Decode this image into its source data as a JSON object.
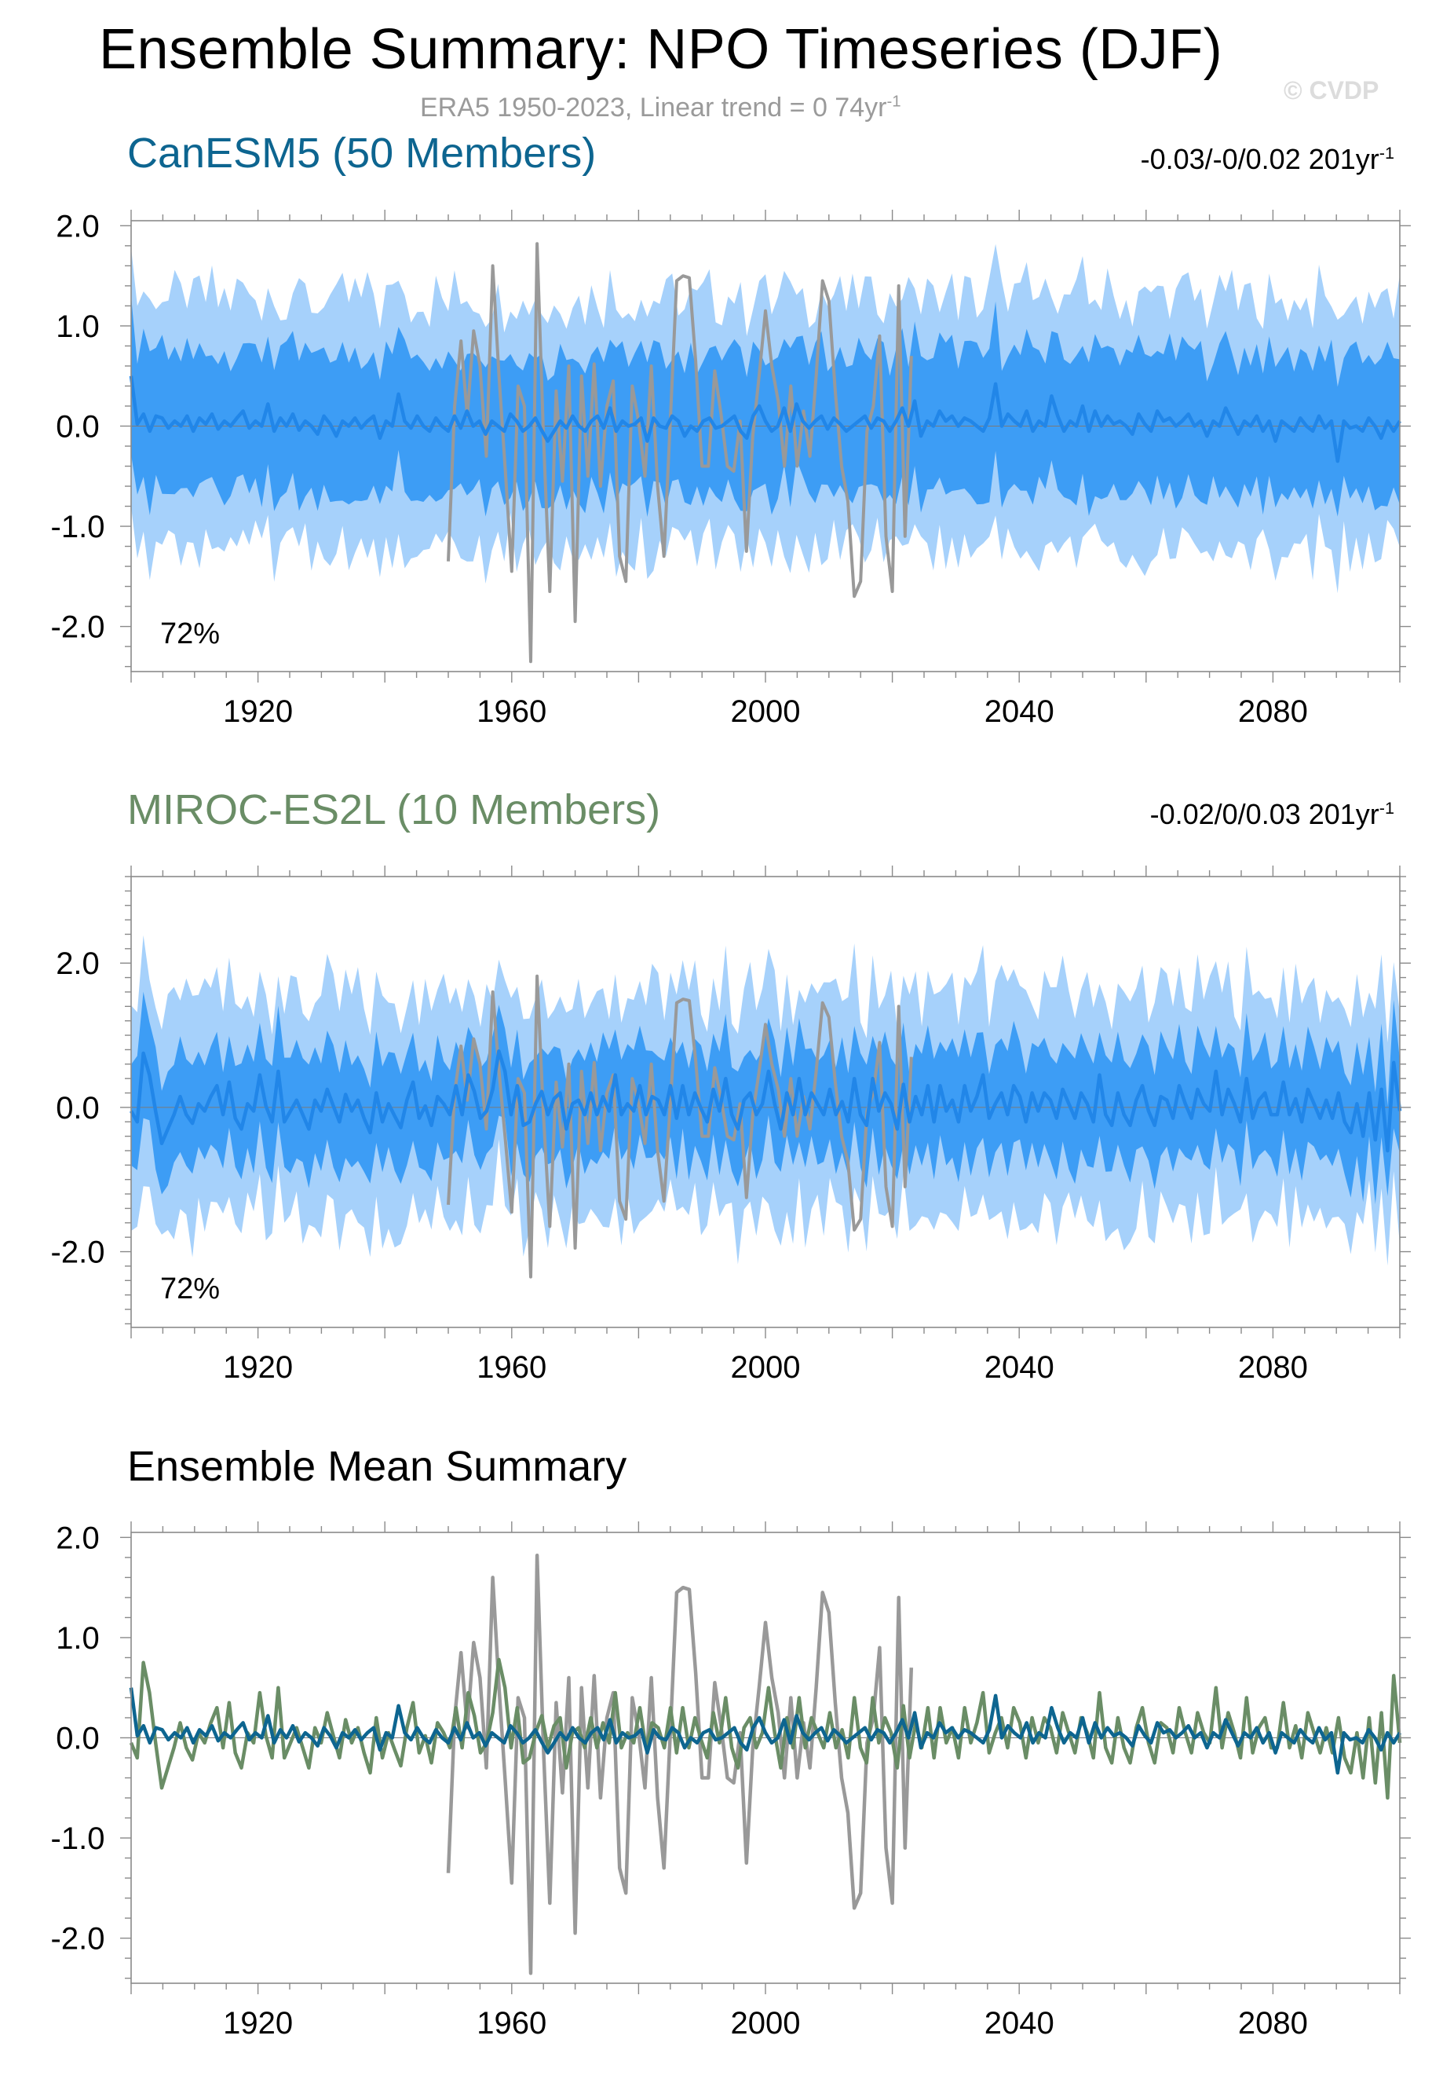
{
  "header": {
    "title": "Ensemble Summary: NPO Timeseries (DJF)",
    "subtitle": "ERA5 1950-2023, Linear trend = 0 74yr",
    "subtitle_sup": "-1",
    "copyright": "© CVDP"
  },
  "colors": {
    "canesm5": "#0d6590",
    "miroc": "#6a8d66",
    "band_outer": "#a6d1fb",
    "band_inner": "#3d9df5",
    "ens_mean_line": "#2186e8",
    "obs": "#999999"
  },
  "panels": [
    {
      "title": "CanESM5 (50 Members)",
      "trend": "-0.03/-0/0.02 201yr",
      "trend_sup": "-1",
      "percent": "72%"
    },
    {
      "title": "MIROC-ES2L (10 Members)",
      "trend": "-0.02/0/0.03 201yr",
      "trend_sup": "-1",
      "percent": "72%"
    },
    {
      "title": "Ensemble Mean Summary",
      "trend": "",
      "trend_sup": "",
      "percent": ""
    }
  ],
  "chart_data": [
    {
      "type": "area",
      "title": "CanESM5 (50 Members)",
      "xlim": [
        1900,
        2100
      ],
      "ylim": [
        -2.45,
        2.05
      ],
      "xticks": [
        "1920",
        "1960",
        "2000",
        "2040",
        "2080"
      ],
      "yticks": [
        "2.0",
        "1.0",
        "0.0",
        "-1.0",
        "-2.0"
      ],
      "annotation": "72%",
      "series": [
        {
          "name": "ensemble mean",
          "x_start": 1900,
          "x_end": 2100,
          "values": [
            0.5,
            0.02,
            0.12,
            -0.05,
            0.1,
            0.08,
            -0.02,
            0.05,
            0.0,
            0.1,
            -0.05,
            0.08,
            0.02,
            0.12,
            -0.03,
            0.05,
            0.0,
            0.08,
            0.15,
            -0.02,
            0.05,
            0.0,
            0.22,
            -0.05,
            0.08,
            0.0,
            0.12,
            -0.04,
            0.05,
            0.0,
            -0.08,
            0.1,
            0.02,
            -0.1,
            0.05,
            0.0,
            0.08,
            -0.02,
            0.05,
            0.1,
            -0.12,
            0.05,
            0.0,
            0.32,
            0.05,
            -0.02,
            0.1,
            0.0,
            -0.05,
            0.08,
            0.0,
            -0.05,
            0.1,
            -0.02,
            0.15,
            0.0,
            0.05,
            -0.08,
            0.05,
            0.0,
            -0.05,
            0.12,
            0.05,
            -0.05,
            0.0,
            0.08,
            -0.04,
            -0.15,
            -0.05,
            0.05,
            -0.02,
            0.1,
            0.0,
            -0.05,
            0.05,
            0.1,
            -0.02,
            0.18,
            -0.05,
            0.05,
            0.0,
            0.02,
            0.08,
            -0.15,
            0.08,
            0.0,
            -0.02,
            0.1,
            0.05,
            -0.1,
            0.0,
            -0.05,
            0.05,
            0.08,
            -0.02,
            0.0,
            0.05,
            0.1,
            -0.05,
            -0.12,
            0.1,
            0.2,
            0.05,
            -0.05,
            0.0,
            0.18,
            -0.05,
            0.22,
            0.05,
            -0.02,
            0.05,
            0.1,
            -0.03,
            0.08,
            0.02,
            -0.05,
            0.0,
            0.05,
            0.1,
            -0.02,
            0.08,
            0.05,
            -0.05,
            0.05,
            0.18,
            0.0,
            0.25,
            -0.1,
            0.05,
            0.0,
            0.15,
            0.05,
            0.1,
            0.0,
            0.08,
            0.05,
            0.0,
            -0.05,
            0.08,
            0.42,
            0.0,
            0.12,
            0.05,
            0.0,
            0.15,
            -0.05,
            0.05,
            0.0,
            0.3,
            0.1,
            -0.05,
            0.05,
            0.0,
            0.2,
            -0.05,
            0.15,
            0.0,
            0.1,
            0.02,
            0.05,
            0.0,
            -0.08,
            0.12,
            0.02,
            -0.05,
            0.15,
            0.05,
            0.08,
            0.0,
            0.05,
            0.12,
            0.0,
            0.05,
            -0.1,
            0.05,
            0.0,
            0.18,
            0.05,
            -0.08,
            0.05,
            0.0,
            0.1,
            -0.05,
            0.05,
            -0.15,
            0.05,
            0.0,
            -0.05,
            0.08,
            0.0,
            -0.05,
            0.1,
            -0.02,
            0.05,
            -0.35,
            0.05,
            -0.02,
            0.0,
            -0.05,
            0.08,
            0.0,
            -0.12,
            0.05,
            -0.05,
            0.05
          ]
        },
        {
          "name": "25-75% spread",
          "low": -0.7,
          "high": 0.7
        },
        {
          "name": "10-90% spread",
          "low": -1.25,
          "high": 1.25
        },
        {
          "name": "ERA5",
          "x_start": 1950,
          "x_end": 2023,
          "values": [
            -1.35,
            0.2,
            0.85,
            0.1,
            0.95,
            0.6,
            -0.3,
            1.6,
            0.5,
            -0.45,
            -1.45,
            0.4,
            0.2,
            -2.35,
            1.82,
            -0.1,
            -1.65,
            0.35,
            -0.55,
            0.6,
            -1.95,
            0.5,
            -0.5,
            0.62,
            -0.6,
            0.2,
            0.45,
            -1.3,
            -1.55,
            0.4,
            0.05,
            -0.5,
            0.6,
            -0.6,
            -1.3,
            0.05,
            1.45,
            1.5,
            1.48,
            0.65,
            -0.4,
            -0.4,
            0.55,
            0.12,
            -0.4,
            -0.45,
            0.05,
            -1.25,
            -0.1,
            0.5,
            1.15,
            0.6,
            0.25,
            -0.4,
            0.4,
            -0.4,
            0.15,
            -0.3,
            0.5,
            1.45,
            1.25,
            0.35,
            -0.4,
            -0.75,
            -1.7,
            -1.55,
            -0.05,
            0.2,
            0.9,
            -1.1,
            -1.65,
            1.4,
            -1.1,
            0.7
          ]
        }
      ]
    },
    {
      "type": "area",
      "title": "MIROC-ES2L (10 Members)",
      "xlim": [
        1900,
        2100
      ],
      "ylim": [
        -3.05,
        3.2
      ],
      "xticks": [
        "1920",
        "1960",
        "2000",
        "2040",
        "2080"
      ],
      "yticks": [
        "2.0",
        "0.0",
        "-2.0"
      ],
      "annotation": "72%",
      "series": [
        {
          "name": "ensemble mean",
          "x_start": 1900,
          "x_end": 2100,
          "values": [
            -0.05,
            -0.2,
            0.75,
            0.45,
            -0.05,
            -0.5,
            -0.3,
            -0.1,
            0.15,
            -0.1,
            -0.22,
            0.05,
            -0.05,
            0.15,
            0.3,
            -0.1,
            0.35,
            -0.15,
            -0.3,
            0.05,
            -0.05,
            0.45,
            0.02,
            -0.2,
            0.5,
            -0.2,
            -0.05,
            0.1,
            -0.1,
            -0.3,
            0.1,
            -0.05,
            0.25,
            0.02,
            -0.2,
            0.18,
            -0.05,
            0.1,
            -0.15,
            -0.35,
            0.2,
            -0.2,
            0.05,
            -0.12,
            -0.28,
            0.1,
            0.35,
            -0.15,
            0.02,
            -0.25,
            0.15,
            0.05,
            -0.1,
            0.3,
            -0.1,
            0.45,
            0.22,
            -0.15,
            -0.05,
            0.25,
            0.78,
            0.5,
            -0.1,
            0.3,
            -0.25,
            -0.2,
            0.05,
            0.22,
            -0.1,
            0.12,
            0.2,
            -0.3,
            0.05,
            0.1,
            -0.1,
            0.2,
            -0.1,
            0.15,
            -0.05,
            0.45,
            -0.1,
            0.05,
            -0.05,
            0.3,
            -0.1,
            0.15,
            0.1,
            -0.1,
            0.3,
            -0.15,
            0.3,
            -0.1,
            0.2,
            -0.02,
            -0.2,
            0.25,
            -0.05,
            0.4,
            -0.1,
            -0.3,
            0.1,
            0.2,
            -0.1,
            0.05,
            0.5,
            0.05,
            -0.3,
            0.2,
            -0.1,
            0.4,
            -0.1,
            0.2,
            0.05,
            -0.1,
            0.25,
            -0.1,
            0.08,
            -0.2,
            0.4,
            -0.1,
            -0.25,
            0.4,
            -0.05,
            0.2,
            0.05,
            -0.3,
            0.32,
            -0.2,
            0.15,
            -0.1,
            0.3,
            -0.2,
            0.3,
            -0.05,
            0.1,
            -0.2,
            0.3,
            -0.05,
            0.15,
            0.45,
            -0.15,
            0.05,
            0.2,
            -0.1,
            0.3,
            0.15,
            -0.2,
            0.2,
            -0.05,
            0.2,
            0.1,
            -0.15,
            0.25,
            0.05,
            -0.15,
            0.2,
            0.05,
            -0.2,
            0.45,
            -0.1,
            -0.25,
            0.2,
            -0.1,
            -0.25,
            0.1,
            0.3,
            -0.05,
            -0.25,
            0.15,
            0.1,
            -0.15,
            0.3,
            0.05,
            -0.15,
            0.25,
            0.05,
            -0.05,
            0.5,
            -0.1,
            0.25,
            0.05,
            -0.2,
            0.4,
            -0.15,
            0.1,
            0.2,
            -0.1,
            -0.1,
            0.35,
            -0.1,
            0.12,
            -0.2,
            0.25,
            0.05,
            -0.15,
            0.1,
            -0.15,
            0.2,
            -0.2,
            -0.35,
            0.05,
            -0.4,
            0.2,
            -0.45,
            0.25,
            -0.6,
            0.62,
            -0.05
          ]
        },
        {
          "name": "25-75% spread",
          "low": -0.75,
          "high": 0.75
        },
        {
          "name": "10-90% spread",
          "low": -1.55,
          "high": 1.55
        },
        {
          "name": "ERA5",
          "x_start": 1950,
          "x_end": 2023,
          "values": [
            -1.35,
            0.2,
            0.85,
            0.1,
            0.95,
            0.6,
            -0.3,
            1.6,
            0.5,
            -0.45,
            -1.45,
            0.4,
            0.2,
            -2.35,
            1.82,
            -0.1,
            -1.65,
            0.35,
            -0.55,
            0.6,
            -1.95,
            0.5,
            -0.5,
            0.62,
            -0.6,
            0.2,
            0.45,
            -1.3,
            -1.55,
            0.4,
            0.05,
            -0.5,
            0.6,
            -0.6,
            -1.3,
            0.05,
            1.45,
            1.5,
            1.48,
            0.65,
            -0.4,
            -0.4,
            0.55,
            0.12,
            -0.4,
            -0.45,
            0.05,
            -1.25,
            -0.1,
            0.5,
            1.15,
            0.6,
            0.25,
            -0.4,
            0.4,
            -0.4,
            0.15,
            -0.3,
            0.5,
            1.45,
            1.25,
            0.35,
            -0.4,
            -0.75,
            -1.7,
            -1.55,
            -0.05,
            0.2,
            0.9,
            -1.1,
            -1.65,
            1.4,
            -1.1,
            0.7
          ]
        }
      ]
    },
    {
      "type": "line",
      "title": "Ensemble Mean Summary",
      "xlim": [
        1900,
        2100
      ],
      "ylim": [
        -2.45,
        2.05
      ],
      "xticks": [
        "1920",
        "1960",
        "2000",
        "2040",
        "2080"
      ],
      "yticks": [
        "2.0",
        "1.0",
        "0.0",
        "-1.0",
        "-2.0"
      ],
      "series": [
        {
          "name": "CanESM5",
          "ref": "chart_data.0.series.0"
        },
        {
          "name": "MIROC-ES2L",
          "ref": "chart_data.1.series.0"
        },
        {
          "name": "ERA5",
          "ref": "chart_data.0.series.3"
        }
      ]
    }
  ]
}
